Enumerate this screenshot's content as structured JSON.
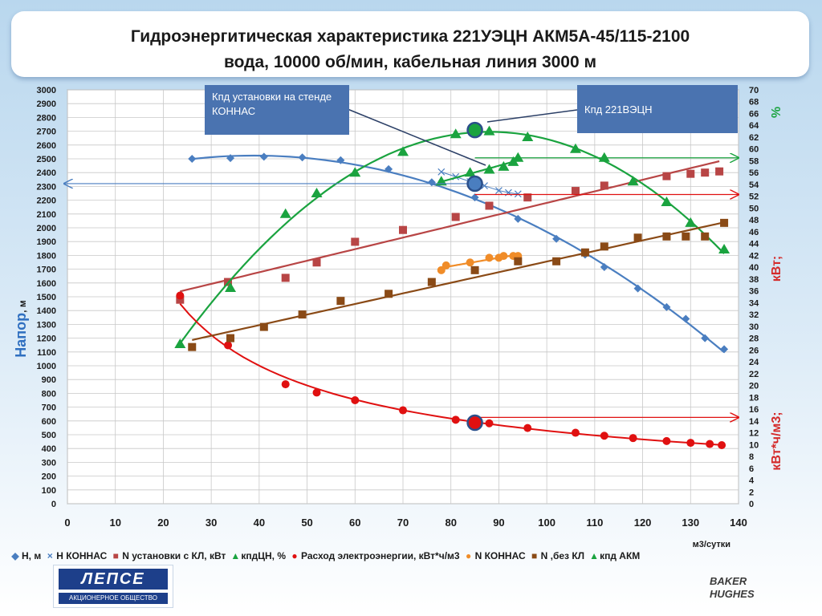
{
  "title": {
    "line1": "Гидроэнергитическая характеристика 221УЭЦН АКМ5А-45/115-2100",
    "line2": "вода, 10000 об/мин, кабельная линия 3000 м"
  },
  "callouts": {
    "konnas": "Кпд установки на стенде КОННАС",
    "ecn221": "Кпд 221ВЭЦН"
  },
  "legend": [
    {
      "name": "Н, м",
      "color": "#4a7ec0",
      "icon": "diamond"
    },
    {
      "name": "Н КОННАС",
      "color": "#4a7ec0",
      "icon": "cross"
    },
    {
      "name": "N установки с КЛ, кВт",
      "color": "#b84545",
      "icon": "square"
    },
    {
      "name": "кпдЦН, %",
      "color": "#1aa33f",
      "icon": "triangle"
    },
    {
      "name": "Расход электроэнергии, кВт*ч/м3",
      "color": "#e01010",
      "icon": "circle"
    },
    {
      "name": "N КОННАС",
      "color": "#f08c28",
      "icon": "circle"
    },
    {
      "name": "N ,без КЛ",
      "color": "#8a4a16",
      "icon": "square"
    },
    {
      "name": "кпд АКМ",
      "color": "#1aa33f",
      "icon": "triangle"
    }
  ],
  "logos": {
    "lepse_mark": "ЛЕПСЕ",
    "lepse_sub": "АКЦИОНЕРНОЕ ОБЩЕСТВО",
    "baker_1": "BAKER",
    "baker_2": "HUGHES"
  },
  "chart_data": {
    "type": "scatter",
    "x_axis": {
      "label": "м3/сутки",
      "min": 0,
      "max": 140,
      "ticks": [
        0,
        10,
        20,
        30,
        40,
        50,
        60,
        70,
        80,
        90,
        100,
        110,
        120,
        130,
        140
      ]
    },
    "y_left": {
      "label": "Напор",
      "unit": ", м",
      "min": 0,
      "max": 3000,
      "step": 100
    },
    "y_right": {
      "labels": [
        "%",
        "кВт;",
        "кВт*ч/м3;"
      ],
      "min": 0,
      "max": 70,
      "step": 2
    },
    "grid": true,
    "legend_position": "bottom",
    "series": [
      {
        "name": "Н, м",
        "axis": "left",
        "color": "#4a7ec0",
        "marker": "diamond",
        "trend": true,
        "points": [
          [
            26,
            2500
          ],
          [
            34,
            2505
          ],
          [
            41,
            2515
          ],
          [
            49,
            2510
          ],
          [
            57,
            2490
          ],
          [
            67,
            2425
          ],
          [
            76,
            2330
          ],
          [
            85,
            2220
          ],
          [
            94,
            2065
          ],
          [
            102,
            1920
          ],
          [
            108,
            1805
          ],
          [
            112,
            1715
          ],
          [
            119,
            1560
          ],
          [
            125,
            1425
          ],
          [
            129,
            1340
          ],
          [
            133,
            1200
          ],
          [
            137,
            1120
          ]
        ]
      },
      {
        "name": "Н КОННАС",
        "axis": "left",
        "color": "#4a7ec0",
        "marker": "cross",
        "trend": false,
        "points": [
          [
            78,
            2405
          ],
          [
            81,
            2370
          ],
          [
            84,
            2335
          ],
          [
            87,
            2305
          ],
          [
            90,
            2270
          ],
          [
            92,
            2255
          ],
          [
            94,
            2245
          ]
        ]
      },
      {
        "name": "N установки с КЛ, кВт",
        "axis": "right",
        "color": "#b84545",
        "marker": "square",
        "trend": true,
        "points": [
          [
            23.5,
            34.5
          ],
          [
            33.5,
            37.5
          ],
          [
            45.5,
            38.2
          ],
          [
            52,
            40.8
          ],
          [
            60,
            44.3
          ],
          [
            70,
            46.3
          ],
          [
            81,
            48.5
          ],
          [
            88,
            50.4
          ],
          [
            96,
            51.8
          ],
          [
            106,
            52.9
          ],
          [
            112,
            53.8
          ],
          [
            125,
            55.4
          ],
          [
            130,
            55.8
          ],
          [
            133,
            56
          ],
          [
            136,
            56.2
          ]
        ]
      },
      {
        "name": "кпдЦН, %",
        "axis": "right",
        "color": "#1aa33f",
        "marker": "triangle",
        "trend": true,
        "points": [
          [
            23.5,
            27
          ],
          [
            34,
            36.5
          ],
          [
            45.5,
            49
          ],
          [
            52,
            52.5
          ],
          [
            60,
            56
          ],
          [
            70,
            59.5
          ],
          [
            81,
            62.5
          ],
          [
            88,
            63
          ],
          [
            96,
            62
          ],
          [
            106,
            60
          ],
          [
            112,
            58.5
          ],
          [
            118,
            54.5
          ],
          [
            125,
            51
          ],
          [
            130,
            47.5
          ],
          [
            137,
            43
          ]
        ]
      },
      {
        "name": "Расход электроэнергии, кВт*ч/м3",
        "axis": "right",
        "color": "#e01010",
        "marker": "circle",
        "trend": true,
        "points": [
          [
            23.5,
            35.2
          ],
          [
            33.5,
            26.8
          ],
          [
            45.5,
            20.2
          ],
          [
            52,
            18.8
          ],
          [
            60,
            17.5
          ],
          [
            70,
            15.8
          ],
          [
            81,
            14.2
          ],
          [
            88,
            13.6
          ],
          [
            96,
            12.8
          ],
          [
            106,
            12
          ],
          [
            112,
            11.5
          ],
          [
            118,
            11.1
          ],
          [
            125,
            10.6
          ],
          [
            130,
            10.3
          ],
          [
            134,
            10.1
          ],
          [
            136.5,
            9.9
          ]
        ]
      },
      {
        "name": "N КОННАС",
        "axis": "right",
        "color": "#f08c28",
        "marker": "circle",
        "trend": true,
        "points": [
          [
            78,
            39.5
          ],
          [
            79,
            40.3
          ],
          [
            84,
            40.8
          ],
          [
            88,
            41.6
          ],
          [
            90,
            41.6
          ],
          [
            91,
            41.9
          ],
          [
            93,
            41.9
          ],
          [
            94,
            41.9
          ]
        ]
      },
      {
        "name": "N ,без КЛ",
        "axis": "right",
        "color": "#8a4a16",
        "marker": "square",
        "trend": true,
        "points": [
          [
            26,
            26.5
          ],
          [
            34,
            28
          ],
          [
            41,
            29.9
          ],
          [
            49,
            32
          ],
          [
            57,
            34.3
          ],
          [
            67,
            35.5
          ],
          [
            76,
            37.5
          ],
          [
            85,
            39.5
          ],
          [
            94,
            41
          ],
          [
            102,
            41
          ],
          [
            108,
            42.5
          ],
          [
            112,
            43.5
          ],
          [
            119,
            45
          ],
          [
            125,
            45.2
          ],
          [
            129,
            45.2
          ],
          [
            133,
            45.2
          ],
          [
            137,
            47.5
          ]
        ]
      },
      {
        "name": "кпд АКМ",
        "axis": "right",
        "color": "#1aa33f",
        "marker": "triangle",
        "trend": true,
        "points": [
          [
            78,
            54.5
          ],
          [
            84,
            56
          ],
          [
            88,
            56.5
          ],
          [
            91,
            57
          ],
          [
            93,
            57.8
          ],
          [
            94,
            58.5
          ]
        ]
      }
    ],
    "highlight_points": [
      {
        "axis": "right",
        "x": 85,
        "y": 63.2,
        "color": "#1aa33f"
      },
      {
        "axis": "left",
        "x": 85,
        "y": 2320,
        "color": "#4a7ec0"
      },
      {
        "axis": "right",
        "x": 85,
        "y": 13.7,
        "color": "#e01010"
      }
    ],
    "arrows": [
      {
        "axis": "left",
        "from": [
          85,
          2320
        ],
        "to": [
          0,
          2320
        ],
        "color": "#4a7ec0"
      },
      {
        "axis": "right",
        "from": [
          85,
          58.5
        ],
        "to": [
          140,
          58.5
        ],
        "color": "#1aa33f"
      },
      {
        "axis": "right",
        "from": [
          85,
          52.3
        ],
        "to": [
          140,
          52.3
        ],
        "color": "#e01010"
      },
      {
        "axis": "right",
        "from": [
          85,
          14.6
        ],
        "to": [
          140,
          14.6
        ],
        "color": "#e01010"
      }
    ]
  }
}
